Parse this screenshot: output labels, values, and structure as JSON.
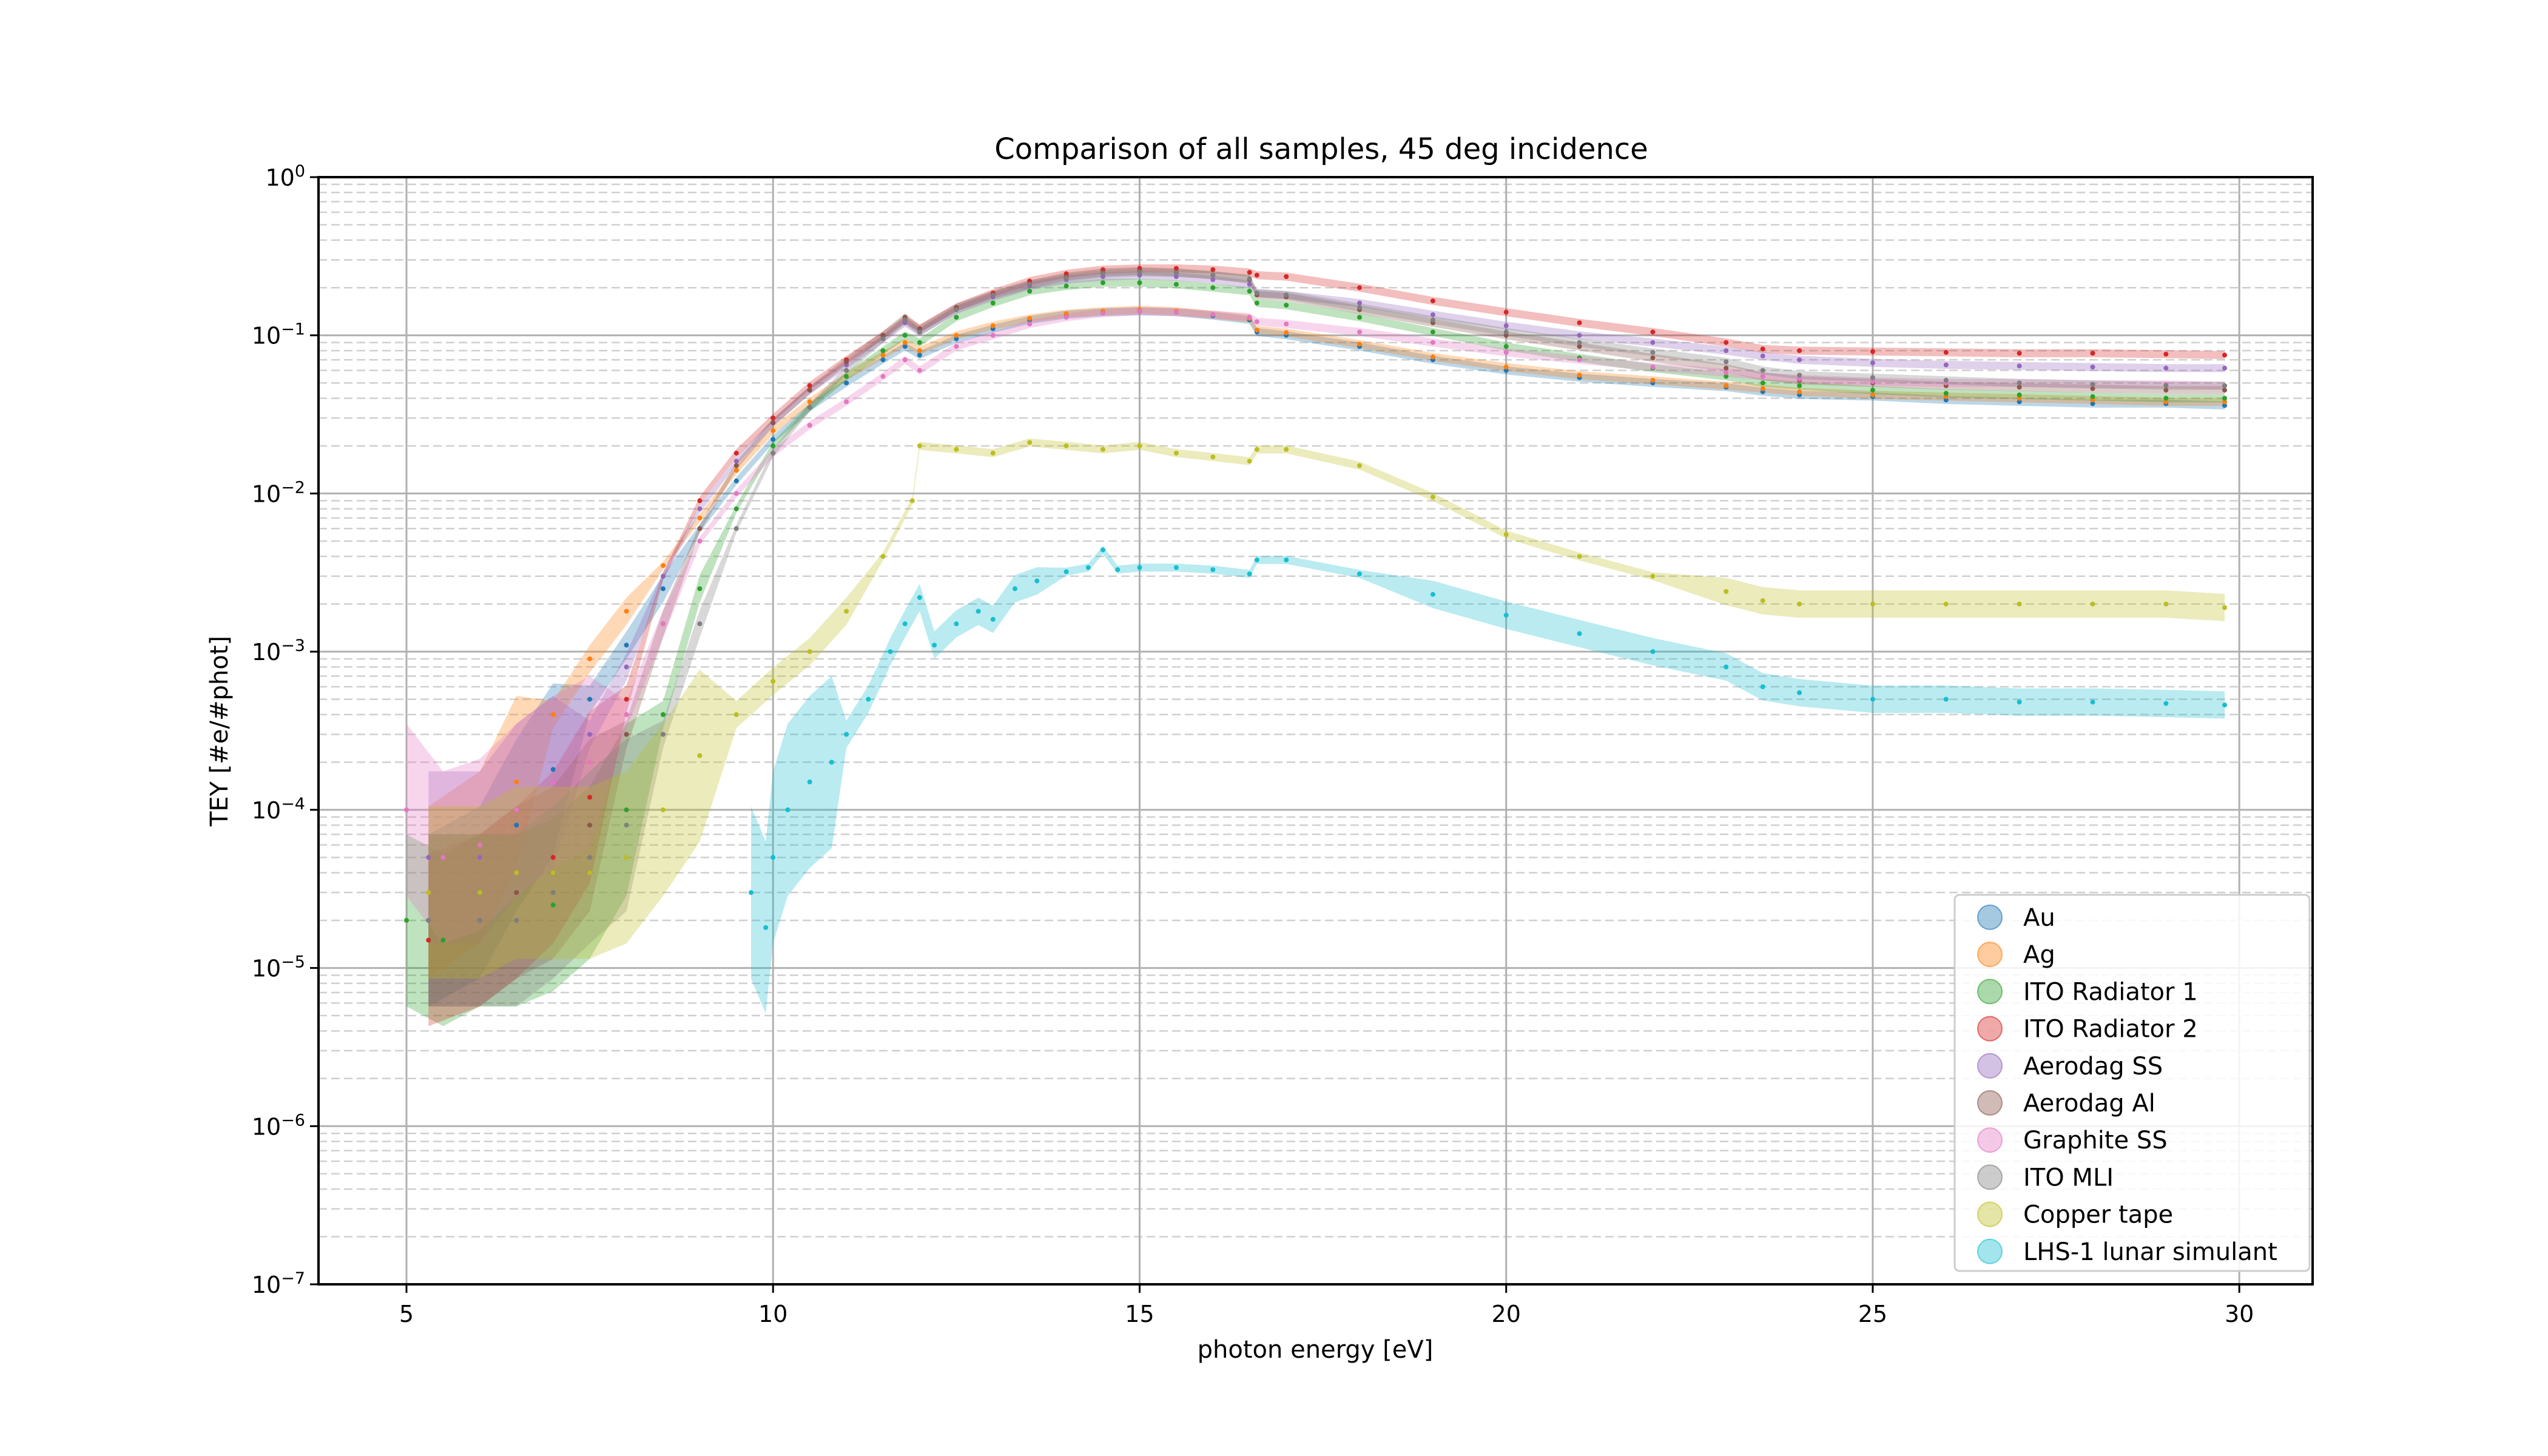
{
  "chart_data": {
    "type": "scatter",
    "title": "Comparison of all samples, 45 deg incidence",
    "xlabel": "photon energy [eV]",
    "ylabel": "TEY [#e/#phot]",
    "xlim": [
      3.8,
      31.0
    ],
    "ylim": [
      1e-07,
      1
    ],
    "yscale": "log",
    "grid": "on (major solid, minor dashed)",
    "legend_position": "lower right",
    "x_ticks": [
      5,
      10,
      15,
      20,
      25,
      30
    ],
    "y_ticks": [
      {
        "value": 1e-07,
        "base": "10",
        "exp": "−7"
      },
      {
        "value": 1e-06,
        "base": "10",
        "exp": "−6"
      },
      {
        "value": 1e-05,
        "base": "10",
        "exp": "−5"
      },
      {
        "value": 0.0001,
        "base": "10",
        "exp": "−4"
      },
      {
        "value": 0.001,
        "base": "10",
        "exp": "−3"
      },
      {
        "value": 0.01,
        "base": "10",
        "exp": "−2"
      },
      {
        "value": 0.1,
        "base": "10",
        "exp": "−1"
      },
      {
        "value": 1,
        "base": "10",
        "exp": "0"
      }
    ],
    "series": [
      {
        "name": "Au",
        "color": "#1f77b4",
        "x": [
          5.3,
          6.0,
          6.5,
          7.0,
          7.5,
          8.0,
          8.5,
          9.0,
          9.5,
          10.0,
          10.5,
          11.0,
          11.5,
          11.8,
          12.0,
          12.5,
          13.0,
          13.5,
          14.0,
          14.5,
          15.0,
          15.5,
          16.0,
          16.5,
          16.6,
          17.0,
          18.0,
          19.0,
          20.0,
          21.0,
          22.0,
          23.0,
          23.5,
          24.0,
          25.0,
          26.0,
          27.0,
          28.0,
          29.0,
          29.8
        ],
        "y": [
          2e-05,
          3e-05,
          8e-05,
          0.00018,
          0.0005,
          0.0011,
          0.0025,
          0.006,
          0.012,
          0.022,
          0.035,
          0.05,
          0.07,
          0.085,
          0.075,
          0.095,
          0.11,
          0.125,
          0.135,
          0.14,
          0.142,
          0.14,
          0.133,
          0.125,
          0.105,
          0.1,
          0.085,
          0.07,
          0.06,
          0.054,
          0.05,
          0.047,
          0.044,
          0.042,
          0.041,
          0.039,
          0.038,
          0.037,
          0.037,
          0.036
        ]
      },
      {
        "name": "Ag",
        "color": "#ff7f0e",
        "x": [
          5.3,
          6.0,
          6.5,
          7.0,
          7.5,
          8.0,
          8.5,
          9.0,
          9.5,
          10.0,
          10.5,
          11.0,
          11.5,
          11.8,
          12.0,
          12.5,
          13.0,
          13.5,
          14.0,
          14.5,
          15.0,
          15.5,
          16.0,
          16.5,
          16.6,
          17.0,
          18.0,
          19.0,
          20.0,
          21.0,
          22.0,
          23.0,
          23.5,
          24.0,
          25.0,
          26.0,
          27.0,
          28.0,
          29.0,
          29.8
        ],
        "y": [
          3e-05,
          5e-05,
          0.00015,
          0.0004,
          0.0009,
          0.0018,
          0.0035,
          0.007,
          0.014,
          0.025,
          0.038,
          0.055,
          0.075,
          0.09,
          0.08,
          0.1,
          0.115,
          0.128,
          0.137,
          0.142,
          0.145,
          0.142,
          0.135,
          0.128,
          0.108,
          0.104,
          0.088,
          0.073,
          0.063,
          0.056,
          0.052,
          0.048,
          0.046,
          0.044,
          0.042,
          0.041,
          0.04,
          0.039,
          0.038,
          0.038
        ]
      },
      {
        "name": "ITO Radiator 1",
        "color": "#2ca02c",
        "x": [
          5.0,
          5.5,
          6.0,
          6.5,
          7.0,
          7.5,
          8.0,
          8.5,
          9.0,
          9.5,
          10.0,
          10.5,
          11.0,
          11.5,
          11.8,
          12.0,
          12.5,
          13.0,
          13.5,
          14.0,
          14.5,
          15.0,
          15.5,
          16.0,
          16.5,
          16.6,
          17.0,
          18.0,
          19.0,
          20.0,
          21.0,
          22.0,
          23.0,
          23.5,
          24.0,
          25.0,
          26.0,
          27.0,
          28.0,
          29.0,
          29.8
        ],
        "y": [
          2e-05,
          1.5e-05,
          2e-05,
          2e-05,
          2.5e-05,
          4e-05,
          0.0001,
          0.0004,
          0.0025,
          0.008,
          0.02,
          0.035,
          0.055,
          0.08,
          0.1,
          0.09,
          0.13,
          0.16,
          0.19,
          0.205,
          0.215,
          0.215,
          0.21,
          0.2,
          0.19,
          0.16,
          0.155,
          0.13,
          0.105,
          0.085,
          0.072,
          0.062,
          0.055,
          0.05,
          0.048,
          0.045,
          0.043,
          0.042,
          0.041,
          0.04,
          0.04
        ]
      },
      {
        "name": "ITO Radiator 2",
        "color": "#d62728",
        "x": [
          5.3,
          6.0,
          6.5,
          7.0,
          7.5,
          8.0,
          8.5,
          9.0,
          9.5,
          10.0,
          10.5,
          11.0,
          11.5,
          11.8,
          12.0,
          12.5,
          13.0,
          13.5,
          14.0,
          14.5,
          15.0,
          15.5,
          16.0,
          16.5,
          16.6,
          17.0,
          18.0,
          19.0,
          20.0,
          21.0,
          22.0,
          23.0,
          23.5,
          24.0,
          25.0,
          26.0,
          27.0,
          28.0,
          29.0,
          29.8
        ],
        "y": [
          1.5e-05,
          2e-05,
          3e-05,
          5e-05,
          0.00012,
          0.0005,
          0.003,
          0.009,
          0.018,
          0.03,
          0.048,
          0.07,
          0.1,
          0.125,
          0.11,
          0.15,
          0.185,
          0.22,
          0.245,
          0.26,
          0.265,
          0.265,
          0.26,
          0.25,
          0.24,
          0.235,
          0.2,
          0.165,
          0.14,
          0.12,
          0.105,
          0.09,
          0.082,
          0.08,
          0.079,
          0.078,
          0.077,
          0.077,
          0.076,
          0.075
        ]
      },
      {
        "name": "Aerodag SS",
        "color": "#9467bd",
        "x": [
          5.3,
          6.0,
          6.5,
          7.0,
          7.5,
          8.0,
          8.5,
          9.0,
          9.5,
          10.0,
          10.5,
          11.0,
          11.5,
          11.8,
          12.0,
          12.5,
          13.0,
          13.5,
          14.0,
          14.5,
          15.0,
          15.5,
          16.0,
          16.5,
          16.6,
          17.0,
          18.0,
          19.0,
          20.0,
          21.0,
          22.0,
          23.0,
          23.5,
          24.0,
          25.0,
          26.0,
          27.0,
          28.0,
          29.0,
          29.8
        ],
        "y": [
          5e-05,
          5e-05,
          0.0001,
          0.00015,
          0.0003,
          0.0008,
          0.003,
          0.008,
          0.016,
          0.028,
          0.045,
          0.065,
          0.095,
          0.12,
          0.105,
          0.145,
          0.175,
          0.205,
          0.225,
          0.235,
          0.24,
          0.235,
          0.225,
          0.21,
          0.185,
          0.18,
          0.16,
          0.135,
          0.115,
          0.1,
          0.09,
          0.08,
          0.074,
          0.07,
          0.067,
          0.065,
          0.064,
          0.063,
          0.062,
          0.062
        ]
      },
      {
        "name": "Aerodag Al",
        "color": "#8c564b",
        "x": [
          5.3,
          6.0,
          6.5,
          7.0,
          7.5,
          8.0,
          8.5,
          9.0,
          9.5,
          10.0,
          10.5,
          11.0,
          11.5,
          11.8,
          12.0,
          12.5,
          13.0,
          13.5,
          14.0,
          14.5,
          15.0,
          15.5,
          16.0,
          16.5,
          16.6,
          17.0,
          18.0,
          19.0,
          20.0,
          21.0,
          22.0,
          23.0,
          23.5,
          24.0,
          25.0,
          26.0,
          27.0,
          28.0,
          29.0,
          29.8
        ],
        "y": [
          2e-05,
          2e-05,
          3e-05,
          4e-05,
          8e-05,
          0.0003,
          0.0015,
          0.006,
          0.015,
          0.028,
          0.045,
          0.068,
          0.1,
          0.13,
          0.11,
          0.15,
          0.18,
          0.21,
          0.235,
          0.25,
          0.255,
          0.25,
          0.24,
          0.225,
          0.18,
          0.175,
          0.145,
          0.12,
          0.1,
          0.085,
          0.072,
          0.062,
          0.055,
          0.052,
          0.05,
          0.048,
          0.047,
          0.046,
          0.045,
          0.045
        ]
      },
      {
        "name": "Graphite SS",
        "color": "#e377c2",
        "x": [
          5.0,
          5.5,
          6.0,
          6.5,
          7.0,
          7.5,
          8.0,
          8.5,
          9.0,
          9.5,
          10.0,
          10.5,
          11.0,
          11.5,
          11.8,
          12.0,
          12.5,
          13.0,
          13.5,
          14.0,
          14.5,
          15.0,
          15.5,
          16.0,
          16.5,
          16.6,
          17.0,
          18.0,
          19.0,
          20.0,
          21.0,
          22.0,
          23.0,
          23.5,
          24.0,
          25.0,
          26.0,
          27.0,
          28.0,
          29.0,
          29.8
        ],
        "y": [
          0.0001,
          5e-05,
          6e-05,
          0.0001,
          0.00015,
          0.0002,
          0.0004,
          0.0015,
          0.005,
          0.01,
          0.018,
          0.027,
          0.038,
          0.055,
          0.07,
          0.06,
          0.085,
          0.1,
          0.118,
          0.13,
          0.138,
          0.142,
          0.14,
          0.135,
          0.13,
          0.122,
          0.118,
          0.105,
          0.09,
          0.078,
          0.07,
          0.063,
          0.058,
          0.055,
          0.053,
          0.051,
          0.05,
          0.05,
          0.049,
          0.049,
          0.048
        ]
      },
      {
        "name": "ITO MLI",
        "color": "#7f7f7f",
        "x": [
          5.3,
          6.0,
          6.5,
          7.0,
          7.5,
          8.0,
          8.5,
          9.0,
          9.5,
          10.0,
          10.5,
          11.0,
          11.5,
          11.8,
          12.0,
          12.5,
          13.0,
          13.5,
          14.0,
          14.5,
          15.0,
          15.5,
          16.0,
          16.5,
          16.6,
          17.0,
          18.0,
          19.0,
          20.0,
          21.0,
          22.0,
          23.0,
          23.5,
          24.0,
          25.0,
          26.0,
          27.0,
          28.0,
          29.0,
          29.8
        ],
        "y": [
          2e-05,
          2e-05,
          2e-05,
          3e-05,
          5e-05,
          8e-05,
          0.0003,
          0.0015,
          0.006,
          0.018,
          0.035,
          0.06,
          0.095,
          0.125,
          0.105,
          0.145,
          0.18,
          0.21,
          0.23,
          0.245,
          0.25,
          0.248,
          0.24,
          0.228,
          0.185,
          0.18,
          0.15,
          0.125,
          0.105,
          0.09,
          0.078,
          0.068,
          0.06,
          0.056,
          0.054,
          0.052,
          0.05,
          0.049,
          0.048,
          0.048
        ]
      },
      {
        "name": "Copper tape",
        "color": "#bcbd22",
        "x": [
          5.3,
          6.0,
          6.5,
          7.0,
          7.5,
          8.0,
          8.5,
          9.0,
          9.5,
          10.0,
          10.5,
          11.0,
          11.5,
          11.9,
          12.0,
          12.5,
          13.0,
          13.5,
          14.0,
          14.5,
          15.0,
          15.5,
          16.0,
          16.5,
          16.6,
          17.0,
          18.0,
          19.0,
          20.0,
          21.0,
          22.0,
          23.0,
          23.5,
          24.0,
          25.0,
          26.0,
          27.0,
          28.0,
          29.0,
          29.8
        ],
        "y": [
          3e-05,
          3e-05,
          4e-05,
          4e-05,
          4e-05,
          5e-05,
          0.0001,
          0.00022,
          0.0004,
          0.00065,
          0.001,
          0.0018,
          0.004,
          0.009,
          0.02,
          0.019,
          0.018,
          0.021,
          0.02,
          0.019,
          0.02,
          0.018,
          0.017,
          0.016,
          0.019,
          0.019,
          0.015,
          0.0095,
          0.0055,
          0.004,
          0.003,
          0.0024,
          0.0021,
          0.002,
          0.002,
          0.002,
          0.002,
          0.002,
          0.002,
          0.0019
        ]
      },
      {
        "name": "LHS-1 lunar simulant",
        "color": "#17becf",
        "x": [
          9.7,
          9.9,
          10.0,
          10.2,
          10.5,
          10.8,
          11.0,
          11.3,
          11.6,
          11.8,
          12.0,
          12.2,
          12.5,
          12.8,
          13.0,
          13.3,
          13.6,
          14.0,
          14.3,
          14.5,
          14.7,
          15.0,
          15.5,
          16.0,
          16.5,
          16.6,
          17.0,
          18.0,
          19.0,
          20.0,
          21.0,
          22.0,
          23.0,
          23.5,
          24.0,
          25.0,
          26.0,
          27.0,
          28.0,
          29.0,
          29.8
        ],
        "y": [
          3e-05,
          1.8e-05,
          5e-05,
          0.0001,
          0.00015,
          0.0002,
          0.0003,
          0.0005,
          0.001,
          0.0015,
          0.0022,
          0.0011,
          0.0015,
          0.0018,
          0.0016,
          0.0025,
          0.0028,
          0.0032,
          0.0034,
          0.0044,
          0.0033,
          0.0034,
          0.0034,
          0.0033,
          0.0031,
          0.0038,
          0.0038,
          0.0031,
          0.0023,
          0.0017,
          0.0013,
          0.001,
          0.0008,
          0.0006,
          0.00055,
          0.0005,
          0.0005,
          0.00048,
          0.00048,
          0.00047,
          0.00046
        ]
      }
    ]
  }
}
